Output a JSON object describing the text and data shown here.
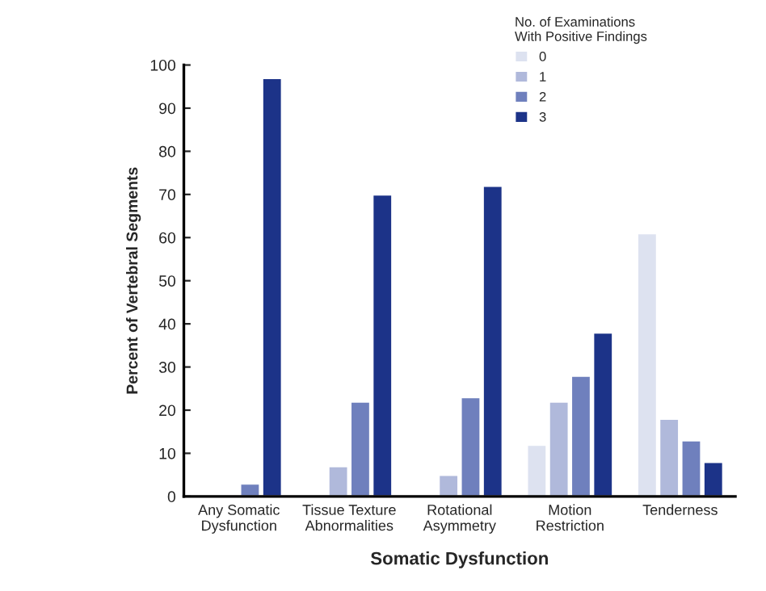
{
  "chart_data": {
    "type": "bar",
    "xlabel": "Somatic Dysfunction",
    "ylabel": "Percent of Vertebral Segments",
    "legend_title": "No. of Examinations\nWith Positive Findings",
    "legend": "top right",
    "grid": false,
    "categories": [
      "Any Somatic\nDysfunction",
      "Tissue Texture\nAbnormalities",
      "Rotational\nAsymmetry",
      "Motion\nRestriction",
      "Tenderness"
    ],
    "series": [
      {
        "name": "0",
        "color": "#dde2f0",
        "values": [
          null,
          0.5,
          null,
          12,
          61
        ]
      },
      {
        "name": "1",
        "color": "#b0b9db",
        "values": [
          null,
          7,
          5,
          22,
          18
        ]
      },
      {
        "name": "2",
        "color": "#6f80bd",
        "values": [
          3,
          22,
          23,
          28,
          13
        ]
      },
      {
        "name": "3",
        "color": "#1c3388",
        "values": [
          97,
          70,
          72,
          38,
          8
        ]
      }
    ],
    "ylim": [
      0,
      100
    ],
    "yticks": [
      0,
      10,
      20,
      30,
      40,
      50,
      60,
      70,
      80,
      90,
      100
    ]
  }
}
